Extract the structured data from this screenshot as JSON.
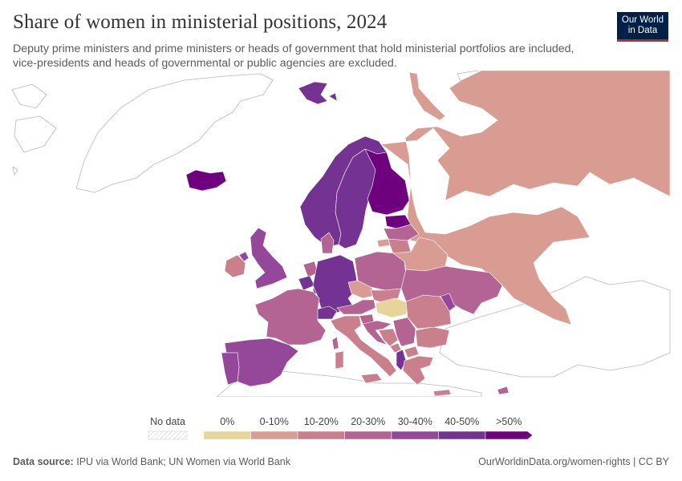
{
  "header": {
    "title": "Share of women in ministerial positions, 2024",
    "subtitle": "Deputy prime ministers and prime ministers or heads of government that hold ministerial portfolios are included, vice-presidents and heads of governmental or public agencies are excluded."
  },
  "logo": {
    "line1": "Our World",
    "line2": "in Data"
  },
  "legend": {
    "no_data": "No data",
    "bins": [
      {
        "label": "0%",
        "color": "#e6d49a"
      },
      {
        "label": "0-10%",
        "color": "#d89c92"
      },
      {
        "label": "10-20%",
        "color": "#c97f8c"
      },
      {
        "label": "20-30%",
        "color": "#b46492"
      },
      {
        "label": "30-40%",
        "color": "#95479a"
      },
      {
        "label": "40-50%",
        "color": "#743392"
      },
      {
        "label": ">50%",
        "color": "#6f007e"
      }
    ]
  },
  "footer": {
    "source_label": "Data source:",
    "source_text": "IPU via World Bank; UN Women via World Bank",
    "url": "OurWorldinData.org/women-rights | CC BY"
  },
  "map_regions": [
    {
      "name": "Iceland",
      "bin": 6
    },
    {
      "name": "Svalbard",
      "bin": 5
    },
    {
      "name": "Norway",
      "bin": 5
    },
    {
      "name": "Sweden",
      "bin": 5
    },
    {
      "name": "Finland",
      "bin": 6
    },
    {
      "name": "Estonia",
      "bin": 6
    },
    {
      "name": "Latvia",
      "bin": 3
    },
    {
      "name": "Lithuania",
      "bin": 2
    },
    {
      "name": "Denmark",
      "bin": 3
    },
    {
      "name": "United Kingdom",
      "bin": 4
    },
    {
      "name": "Ireland",
      "bin": 2
    },
    {
      "name": "Netherlands",
      "bin": 3
    },
    {
      "name": "Belgium",
      "bin": 5
    },
    {
      "name": "Luxembourg",
      "bin": 4
    },
    {
      "name": "Germany",
      "bin": 5
    },
    {
      "name": "Poland",
      "bin": 3
    },
    {
      "name": "Belarus",
      "bin": 1
    },
    {
      "name": "Czechia",
      "bin": 1
    },
    {
      "name": "Slovakia",
      "bin": 2
    },
    {
      "name": "Austria",
      "bin": 3
    },
    {
      "name": "Switzerland",
      "bin": 5
    },
    {
      "name": "France",
      "bin": 3
    },
    {
      "name": "Spain",
      "bin": 4
    },
    {
      "name": "Portugal",
      "bin": 4
    },
    {
      "name": "Italy",
      "bin": 2
    },
    {
      "name": "Hungary",
      "bin": 0
    },
    {
      "name": "Ukraine",
      "bin": 3
    },
    {
      "name": "Moldova",
      "bin": 4
    },
    {
      "name": "Romania",
      "bin": 2
    },
    {
      "name": "Bulgaria",
      "bin": 2
    },
    {
      "name": "Slovenia",
      "bin": 3
    },
    {
      "name": "Croatia",
      "bin": 3
    },
    {
      "name": "Bosnia and Herzegovina",
      "bin": 2
    },
    {
      "name": "Serbia",
      "bin": 3
    },
    {
      "name": "Montenegro",
      "bin": 2
    },
    {
      "name": "Albania",
      "bin": 5
    },
    {
      "name": "North Macedonia",
      "bin": 2
    },
    {
      "name": "Greece",
      "bin": 2
    },
    {
      "name": "Cyprus",
      "bin": 3
    },
    {
      "name": "Russia",
      "bin": 1
    }
  ]
}
